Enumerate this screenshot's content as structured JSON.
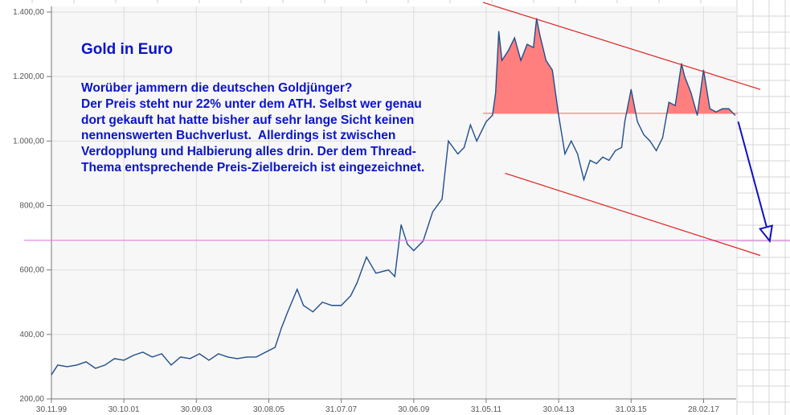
{
  "chart_data": {
    "type": "line",
    "title": "Gold in Euro",
    "annotation_lines": [
      "Worüber jammern die deutschen Goldjünger?",
      "Der Preis steht nur 22% unter dem ATH. Selbst wer genau",
      "dort gekauft hat hatte bisher auf sehr lange Sicht keinen",
      "nennenswerten Buchverlust.  Allerdings ist zwischen",
      "Verdopplung und Halbierung alles drin. Der dem Thread-",
      "Thema entsprechende Preis-Zielbereich ist eingezeichnet."
    ],
    "ylim": [
      200,
      1400
    ],
    "y_ticks": [
      "200,00",
      "400,00",
      "600,00",
      "800,00",
      "1.000,00",
      "1.200,00",
      "1.400,00"
    ],
    "y_tick_values": [
      200,
      400,
      600,
      800,
      1000,
      1200,
      1400
    ],
    "x_ticks": [
      "30.11.99",
      "30.10.01",
      "30.09.03",
      "30.08.05",
      "31.07.07",
      "30.06.09",
      "31.05.11",
      "30.04.13",
      "31.03.15",
      "28.02.17"
    ],
    "x_tick_dates": [
      "1999-11",
      "2001-10",
      "2003-09",
      "2005-08",
      "2007-07",
      "2009-06",
      "2011-05",
      "2013-04",
      "2015-03",
      "2017-02"
    ],
    "xlim": [
      "1999-11",
      "2017-12"
    ],
    "grid": true,
    "series_color": "#1f4e8c",
    "series": [
      {
        "x": [
          "1999-11",
          "2000-01",
          "2000-04",
          "2000-07",
          "2000-10",
          "2001-01",
          "2001-04",
          "2001-07",
          "2001-10",
          "2002-01",
          "2002-04",
          "2002-07",
          "2002-10",
          "2003-01",
          "2003-04",
          "2003-07",
          "2003-10",
          "2004-01",
          "2004-04",
          "2004-07",
          "2004-10",
          "2005-01",
          "2005-04",
          "2005-07",
          "2005-10",
          "2005-12",
          "2006-02",
          "2006-05",
          "2006-07",
          "2006-10",
          "2007-01",
          "2007-04",
          "2007-07",
          "2007-10",
          "2007-12",
          "2008-03",
          "2008-06",
          "2008-10",
          "2008-12",
          "2009-02",
          "2009-04",
          "2009-06",
          "2009-09",
          "2009-12",
          "2010-03",
          "2010-05",
          "2010-08",
          "2010-10",
          "2010-12",
          "2011-02",
          "2011-05",
          "2011-07",
          "2011-08",
          "2011-09",
          "2011-10",
          "2011-12",
          "2012-02",
          "2012-04",
          "2012-06",
          "2012-08",
          "2012-09",
          "2012-10",
          "2012-12",
          "2013-02",
          "2013-04",
          "2013-06",
          "2013-08",
          "2013-10",
          "2013-12",
          "2014-02",
          "2014-04",
          "2014-06",
          "2014-08",
          "2014-10",
          "2014-12",
          "2015-01",
          "2015-03",
          "2015-05",
          "2015-07",
          "2015-09",
          "2015-11",
          "2016-01",
          "2016-03",
          "2016-05",
          "2016-07",
          "2016-08",
          "2016-10",
          "2016-12",
          "2017-02",
          "2017-04",
          "2017-06",
          "2017-08",
          "2017-10",
          "2017-12"
        ],
        "values": [
          275,
          305,
          300,
          305,
          315,
          295,
          305,
          325,
          320,
          335,
          345,
          330,
          340,
          305,
          330,
          325,
          340,
          320,
          340,
          330,
          325,
          330,
          330,
          345,
          360,
          420,
          470,
          540,
          490,
          470,
          500,
          490,
          490,
          520,
          560,
          640,
          590,
          600,
          580,
          740,
          680,
          660,
          690,
          780,
          820,
          1000,
          960,
          980,
          1050,
          1000,
          1060,
          1080,
          1150,
          1340,
          1250,
          1280,
          1320,
          1250,
          1300,
          1290,
          1380,
          1330,
          1250,
          1220,
          1080,
          960,
          1000,
          960,
          880,
          940,
          930,
          950,
          940,
          970,
          980,
          1060,
          1160,
          1060,
          1020,
          1000,
          970,
          1010,
          1120,
          1110,
          1240,
          1200,
          1150,
          1080,
          1220,
          1100,
          1090,
          1100,
          1100,
          1080
        ]
      }
    ],
    "reference_level": 1086,
    "reference_fill_color": "#ff7f7f",
    "target_level": 692,
    "target_line_color": "#e080e0",
    "channel_color": "#e02020",
    "channel_upper": [
      [
        "2011-04",
        1430
      ],
      [
        "2018-08",
        1160
      ]
    ],
    "channel_lower": [
      [
        "2011-11",
        900
      ],
      [
        "2018-08",
        645
      ]
    ],
    "arrow_color": "#1010c0",
    "arrow": [
      [
        "2018-01",
        1060
      ],
      [
        "2018-11",
        690
      ]
    ]
  }
}
